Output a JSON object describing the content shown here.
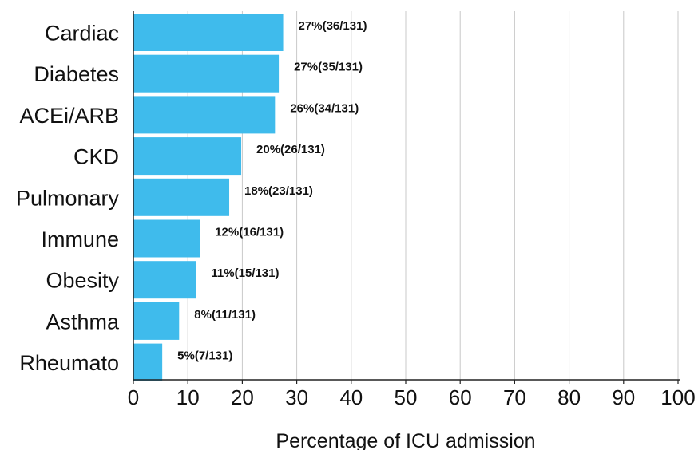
{
  "chart_data": {
    "type": "bar",
    "orientation": "horizontal",
    "categories": [
      "Cardiac",
      "Diabetes",
      "ACEi/ARB",
      "CKD",
      "Pulmonary",
      "Immune",
      "Obesity",
      "Asthma",
      "Rheumato"
    ],
    "values": [
      27.5,
      26.7,
      26.0,
      19.8,
      17.6,
      12.2,
      11.5,
      8.4,
      5.3
    ],
    "data_labels": [
      "27%(36/131)",
      "27%(35/131)",
      "26%(34/131)",
      "20%(26/131)",
      "18%(23/131)",
      "12%(16/131)",
      "11%(15/131)",
      "8%(11/131)",
      "5%(7/131)"
    ],
    "xlabel": "Percentage of ICU admission",
    "ylabel": "",
    "xlim": [
      0,
      100
    ],
    "xticks": [
      "0",
      "10",
      "20",
      "30",
      "40",
      "50",
      "60",
      "70",
      "80",
      "90",
      "100"
    ],
    "grid": "vertical",
    "bar_color": "#3FBBEC",
    "grid_color": "#c8c8c8",
    "axis_color": "#222222"
  }
}
